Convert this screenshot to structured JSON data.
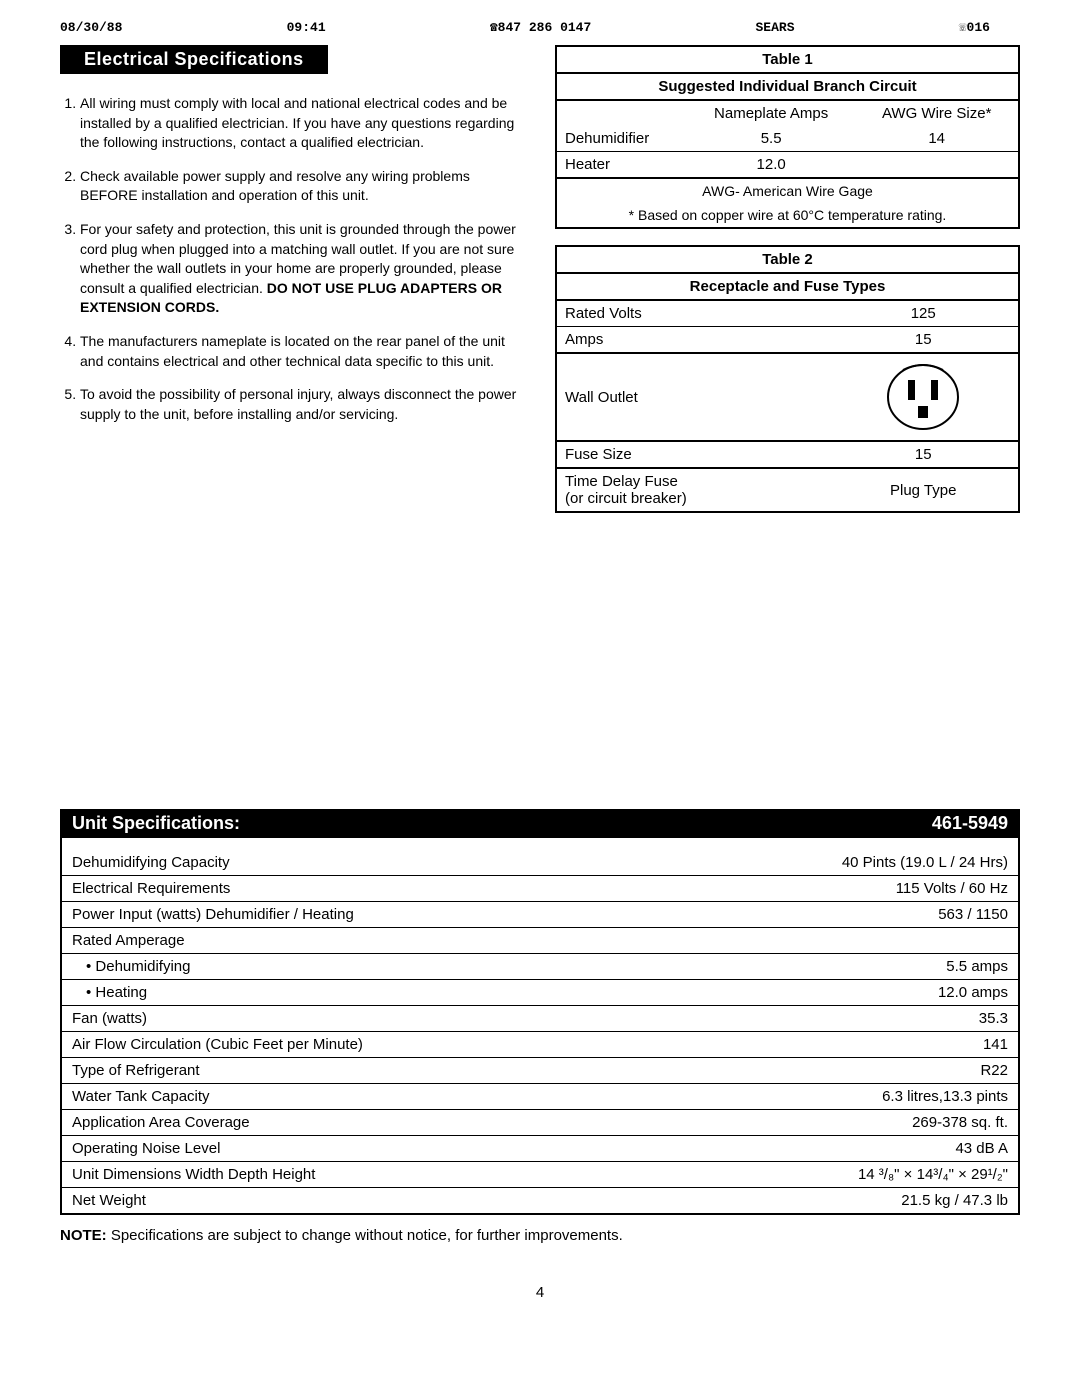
{
  "fax": {
    "date": "08/30/88",
    "time": "09:41",
    "fax_no": "☎847 286 0147",
    "sender": "SEARS",
    "page_code": "☏016"
  },
  "section_title": "Electrical Specifications",
  "elec_list": [
    "All wiring must comply with local and national electrical codes and be installed by a qualified electrician. If you have any questions regarding the following instructions, contact a qualified electrician.",
    "Check available power supply and resolve any wiring problems BEFORE installation and operation of this unit.",
    "For your safety and protection, this unit is grounded through the power cord plug when plugged into a matching wall outlet. If you are not sure whether the wall outlets in your home are properly grounded, please consult a qualified electrician. <b>DO NOT USE PLUG ADAPTERS OR EXTENSION CORDS.</b>",
    "The manufacturers nameplate is located on the rear panel of the unit and contains electrical and other technical data specific to this unit.",
    "To avoid the possibility of personal injury, always disconnect the power supply to the unit, before installing and/or servicing."
  ],
  "table1": {
    "title": "Table 1",
    "subtitle": "Suggested Individual Branch Circuit",
    "headers": [
      "",
      "Nameplate Amps",
      "AWG Wire Size*"
    ],
    "rows": [
      [
        "Dehumidifier",
        "5.5",
        "14"
      ],
      [
        "Heater",
        "12.0",
        ""
      ]
    ],
    "note1": "AWG- American Wire Gage",
    "note2": "* Based on copper wire at 60°C temperature rating."
  },
  "table2": {
    "title": "Table 2",
    "subtitle": "Receptacle and Fuse Types",
    "rows": [
      [
        "Rated Volts",
        "125"
      ],
      [
        "Amps",
        "15"
      ],
      [
        "Wall Outlet",
        "__OUTLET__"
      ],
      [
        "Fuse Size",
        "15"
      ],
      [
        "Time Delay Fuse\n(or circuit breaker)",
        "Plug Type"
      ]
    ]
  },
  "unit_spec": {
    "header_left": "Unit Specifications:",
    "header_right": "461-5949",
    "rows": [
      [
        "Dehumidifying Capacity",
        "40 Pints (19.0 L / 24 Hrs)"
      ],
      [
        "Electrical Requirements",
        "115 Volts / 60 Hz"
      ],
      [
        "Power Input (watts)  Dehumidifier / Heating",
        "563 / 1150"
      ],
      [
        "Rated Amperage",
        ""
      ],
      [
        "• Dehumidifying",
        "5.5 amps"
      ],
      [
        "• Heating",
        "12.0 amps"
      ],
      [
        "Fan (watts)",
        "35.3"
      ],
      [
        "Air Flow Circulation (Cubic Feet per Minute)",
        "141"
      ],
      [
        "Type of Refrigerant",
        "R22"
      ],
      [
        "Water Tank Capacity",
        "6.3 litres,13.3 pints"
      ],
      [
        "Application Area Coverage",
        "269-378 sq. ft."
      ],
      [
        "Operating Noise Level",
        "43 dB A"
      ],
      [
        "Unit Dimensions  Width Depth Height",
        "14 ³/₈\" × 14³/₄\" × 29¹/₂\""
      ],
      [
        "Net Weight",
        "21.5 kg / 47.3 lb"
      ]
    ],
    "indent_rows": [
      4,
      5
    ]
  },
  "note": "<b>NOTE:</b> Specifications are subject to change without notice, for further improvements.",
  "page_number": "4"
}
